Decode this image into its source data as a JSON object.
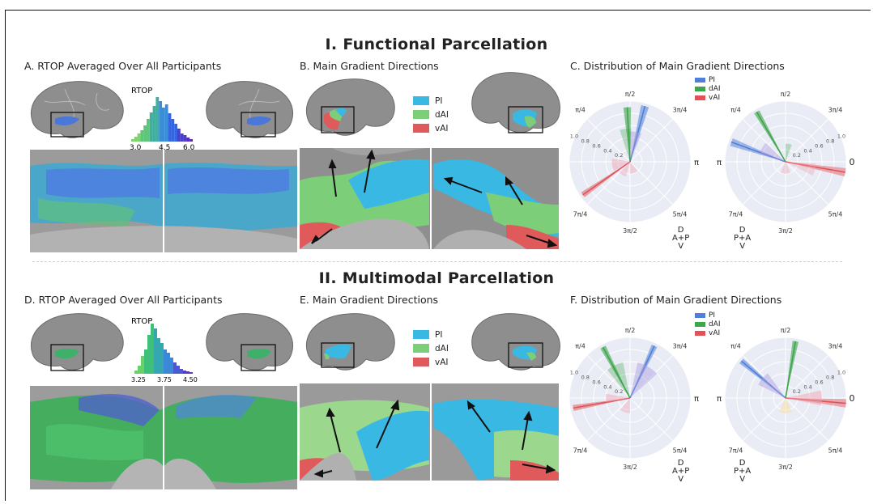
{
  "section1_title": "I. Functional Parcellation",
  "section2_title": "II. Multimodal Parcellation",
  "panels": {
    "A": "A. RTOP Averaged Over All Participants",
    "B": "B. Main Gradient Directions",
    "C": "C. Distribution of Main Gradient Directions",
    "D": "D. RTOP Averaged Over All Participants",
    "E": "E. Main Gradient Directions",
    "F": "F. Distribution of Main Gradient Directions"
  },
  "hist_top": {
    "label": "RTOP",
    "ticks": [
      "3.0",
      "4.5",
      "6.0"
    ]
  },
  "hist_bottom": {
    "label": "RTOP",
    "ticks": [
      "3.25",
      "3.75",
      "4.50"
    ]
  },
  "legend": [
    {
      "name": "PI",
      "color": "#3ab8e4"
    },
    {
      "name": "dAI",
      "color": "#7ccf78"
    },
    {
      "name": "vAI",
      "color": "#e0595b"
    }
  ],
  "polar_legend": [
    {
      "name": "PI",
      "color": "#4f7fd8"
    },
    {
      "name": "dAI",
      "color": "#3da54a"
    },
    {
      "name": "vAI",
      "color": "#e05257"
    }
  ],
  "polar_labels": {
    "top": "π/2",
    "left_top": "π/4",
    "right_top": "3π/4",
    "left_bot": "7π/4",
    "right_bot": "5π/4",
    "bottom": "3π/2",
    "zero": "0",
    "pi": "π",
    "radial": [
      "1.0",
      "0.8",
      "0.6",
      "0.4",
      "0.2"
    ]
  },
  "orientation": {
    "left": {
      "top": "D",
      "mid": "A+P",
      "bot": "V"
    },
    "right": {
      "top": "D",
      "mid": "P+A",
      "bot": "V"
    }
  },
  "colors": {
    "brain": "#8c8c8c",
    "panel_bg": "#e9ebf5"
  }
}
